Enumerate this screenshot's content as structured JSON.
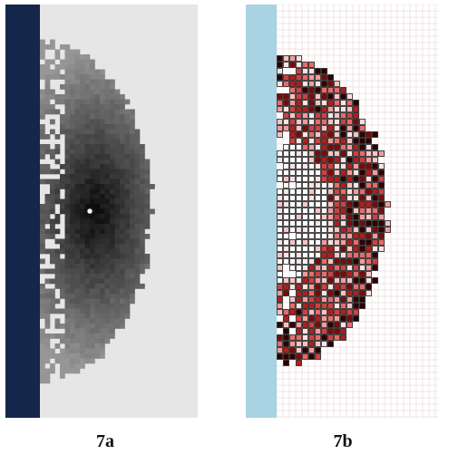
{
  "panels": [
    {
      "id": "a",
      "caption": "7a",
      "colors": {
        "background": "#e6e6e6",
        "wall": "#14264a",
        "cells_dark": "#000000",
        "cells_light": "#8a8a8a",
        "center_marker": "#ffffff"
      },
      "style": "grayscale-filled-cells"
    },
    {
      "id": "b",
      "caption": "7b",
      "colors": {
        "background": "#ffffff",
        "grid_lines": "#eadcdc",
        "wall": "#a9d2e3",
        "cell_outline": "#222222",
        "cell_fill_low": "#fde6e6",
        "cell_fill_mid": "#e05a5a",
        "cell_fill_high": "#7a0a0a",
        "cell_fill_max": "#000000"
      },
      "style": "outlined-colored-cells"
    }
  ]
}
